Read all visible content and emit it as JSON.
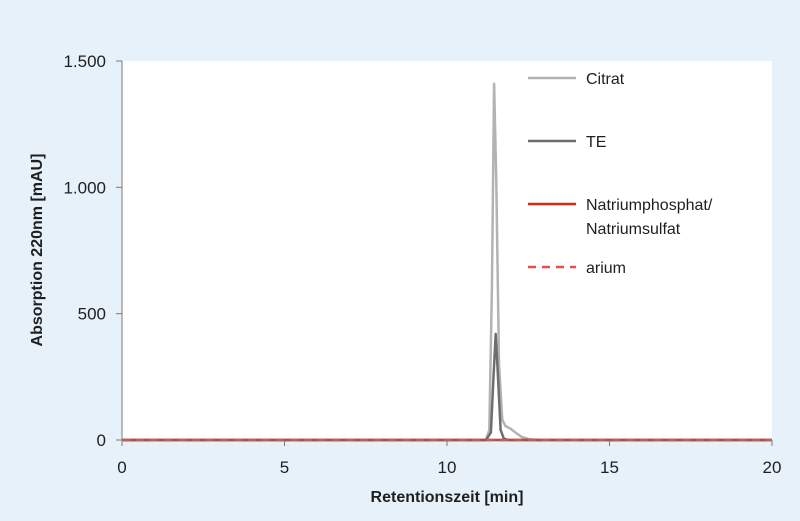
{
  "chart_data": {
    "type": "line",
    "xlabel": "Retentionszeit [min]",
    "ylabel": "Absorption 220nm [mAU]",
    "xlim": [
      0,
      20
    ],
    "ylim": [
      0,
      1500
    ],
    "x_ticks": [
      0,
      5,
      10,
      15,
      20
    ],
    "x_tick_labels": [
      "0",
      "5",
      "10",
      "15",
      "20"
    ],
    "y_ticks": [
      0,
      500,
      1000,
      1500
    ],
    "y_tick_labels": [
      "0",
      "500",
      "1.000",
      "1.500"
    ],
    "grid": false,
    "legend_position": "top-right",
    "series": [
      {
        "name": "Citrat",
        "color": "#b3b3b3",
        "style": "solid",
        "points": [
          [
            0,
            0
          ],
          [
            11.2,
            0
          ],
          [
            11.3,
            40
          ],
          [
            11.38,
            600
          ],
          [
            11.45,
            1410
          ],
          [
            11.52,
            1000
          ],
          [
            11.6,
            300
          ],
          [
            11.7,
            80
          ],
          [
            11.8,
            55
          ],
          [
            11.95,
            45
          ],
          [
            12.1,
            30
          ],
          [
            12.3,
            12
          ],
          [
            12.5,
            4
          ],
          [
            12.8,
            0
          ],
          [
            20,
            0
          ]
        ]
      },
      {
        "name": "TE",
        "color": "#6e6e6e",
        "style": "solid",
        "points": [
          [
            0,
            0
          ],
          [
            11.2,
            0
          ],
          [
            11.35,
            30
          ],
          [
            11.43,
            250
          ],
          [
            11.5,
            420
          ],
          [
            11.57,
            250
          ],
          [
            11.65,
            40
          ],
          [
            11.75,
            5
          ],
          [
            11.9,
            0
          ],
          [
            20,
            0
          ]
        ]
      },
      {
        "name": "Natriumphosphat/\nNatriumsulfat",
        "color": "#d62a1e",
        "style": "solid",
        "points": [
          [
            0,
            0
          ],
          [
            20,
            0
          ]
        ]
      },
      {
        "name": "arium",
        "color": "#e0524a",
        "style": "dashed",
        "points": [
          [
            0,
            0
          ],
          [
            20,
            0
          ]
        ]
      }
    ]
  }
}
